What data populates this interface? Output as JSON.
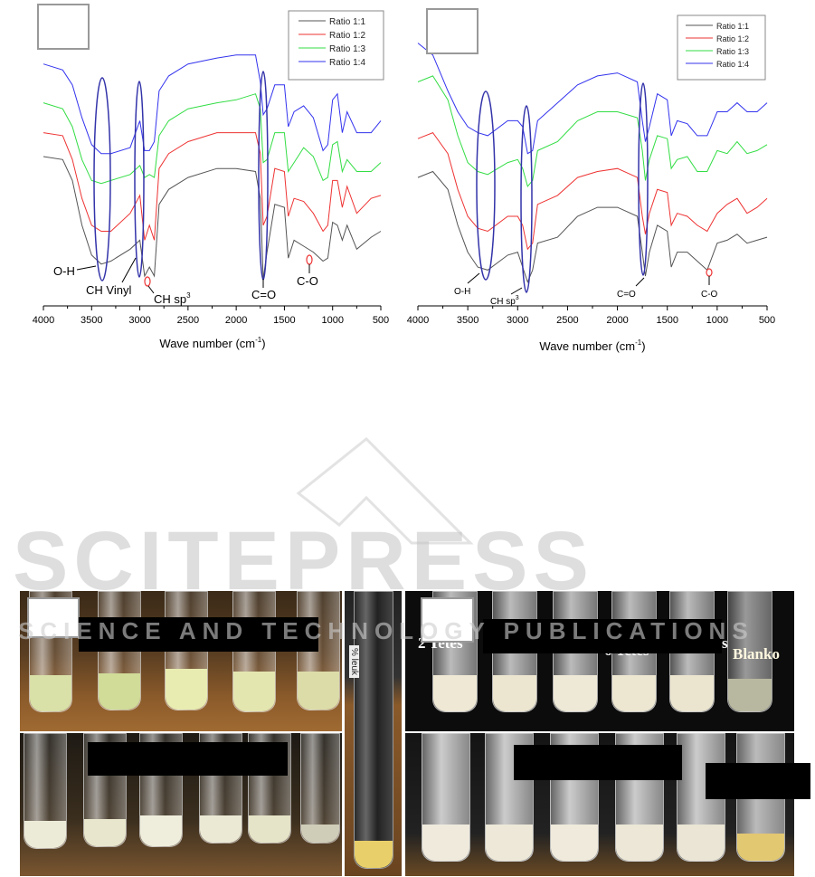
{
  "watermark": {
    "logo_text": "SCITEPRESS",
    "subtitle": "SCIENCE AND TECHNOLOGY PUBLICATIONS"
  },
  "chart_data": [
    {
      "type": "line",
      "xlabel": "Wave number (cm-1)",
      "xlabel_main": "Wave number (cm",
      "xlabel_sup": "-1",
      "xlabel_close": ")",
      "xlim": [
        4000,
        500
      ],
      "x_reversed": true,
      "ylim": [
        0,
        100
      ],
      "y_axis_shown": false,
      "xticks": [
        "4000",
        "3500",
        "3000",
        "2500",
        "2000",
        "1500",
        "1000",
        "500"
      ],
      "legend_position": "top-right",
      "x": [
        4000,
        3800,
        3700,
        3600,
        3500,
        3400,
        3300,
        3100,
        3000,
        2950,
        2900,
        2850,
        2800,
        2700,
        2500,
        2200,
        2000,
        1800,
        1750,
        1720,
        1680,
        1600,
        1500,
        1460,
        1400,
        1300,
        1200,
        1100,
        1050,
        1000,
        950,
        900,
        850,
        750,
        600,
        500
      ],
      "series": [
        {
          "name": "Ratio 1:1",
          "color": "#555555",
          "values": [
            50,
            49,
            42,
            27,
            17,
            14,
            15,
            19,
            22,
            10,
            13,
            10,
            34,
            39,
            43,
            46,
            46,
            45,
            36,
            9,
            18,
            34,
            33,
            16,
            22,
            20,
            18,
            15,
            16,
            28,
            27,
            22,
            27,
            19,
            23,
            25
          ]
        },
        {
          "name": "Ratio 1:2",
          "color": "#ee3333",
          "values": [
            58,
            57,
            49,
            36,
            27,
            25,
            25,
            31,
            37,
            22,
            27,
            22,
            46,
            51,
            55,
            58,
            58,
            58,
            51,
            27,
            30,
            46,
            45,
            30,
            36,
            35,
            31,
            25,
            27,
            42,
            42,
            33,
            40,
            31,
            36,
            37
          ]
        },
        {
          "name": "Ratio 1:3",
          "color": "#33dd44",
          "values": [
            68,
            66,
            60,
            49,
            42,
            41,
            42,
            44,
            47,
            43,
            44,
            43,
            57,
            62,
            66,
            68,
            69,
            71,
            66,
            48,
            49,
            58,
            58,
            45,
            48,
            53,
            50,
            42,
            43,
            54,
            55,
            45,
            49,
            45,
            45,
            48
          ]
        },
        {
          "name": "Ratio 1:4",
          "color": "#3333ee",
          "values": [
            81,
            79,
            74,
            63,
            54,
            51,
            51,
            53,
            62,
            52,
            52,
            55,
            72,
            77,
            81,
            83,
            84,
            84,
            75,
            64,
            66,
            74,
            74,
            60,
            65,
            67,
            63,
            52,
            54,
            69,
            71,
            58,
            65,
            58,
            58,
            62
          ]
        }
      ],
      "annotations": {
        "oh": "O-H",
        "ch_vinyl": "CH Vinyl",
        "ch_sp3": "CH sp",
        "ch_sp3_sup": "3",
        "co_double": "C=O",
        "co_single": "C-O"
      }
    },
    {
      "type": "line",
      "xlabel": "Wave number (cm-1)",
      "xlabel_main": "Wave number (cm",
      "xlabel_sup": "-1",
      "xlabel_close": ")",
      "xlim": [
        4000,
        500
      ],
      "x_reversed": true,
      "ylim": [
        0,
        100
      ],
      "y_axis_shown": false,
      "xticks": [
        "4000",
        "3500",
        "3000",
        "2500",
        "2000",
        "1500",
        "1000",
        "500"
      ],
      "legend_position": "top-right",
      "x": [
        4000,
        3850,
        3700,
        3600,
        3500,
        3400,
        3300,
        3100,
        3000,
        2950,
        2900,
        2850,
        2800,
        2600,
        2400,
        2200,
        2000,
        1800,
        1750,
        1720,
        1680,
        1600,
        1500,
        1460,
        1400,
        1300,
        1200,
        1100,
        1000,
        900,
        800,
        700,
        600,
        500
      ],
      "series": [
        {
          "name": "Ratio 1:1",
          "color": "#555555",
          "values": [
            43,
            45,
            39,
            27,
            18,
            13,
            12,
            17,
            18,
            13,
            8,
            12,
            21,
            23,
            30,
            33,
            33,
            30,
            18,
            10,
            18,
            27,
            25,
            13,
            18,
            18,
            15,
            12,
            21,
            22,
            24,
            21,
            22,
            23
          ]
        },
        {
          "name": "Ratio 1:2",
          "color": "#ee3333",
          "values": [
            56,
            58,
            51,
            39,
            30,
            26,
            25,
            30,
            30,
            27,
            19,
            21,
            34,
            37,
            43,
            45,
            46,
            43,
            30,
            24,
            31,
            39,
            38,
            27,
            31,
            30,
            27,
            25,
            31,
            34,
            36,
            31,
            33,
            36
          ]
        },
        {
          "name": "Ratio 1:3",
          "color": "#33dd44",
          "values": [
            75,
            77,
            69,
            57,
            48,
            45,
            44,
            48,
            49,
            46,
            40,
            42,
            52,
            55,
            62,
            65,
            65,
            63,
            52,
            42,
            49,
            57,
            56,
            46,
            49,
            50,
            45,
            45,
            52,
            51,
            55,
            51,
            52,
            54
          ]
        },
        {
          "name": "Ratio 1:4",
          "color": "#3333ee",
          "values": [
            88,
            84,
            72,
            65,
            60,
            58,
            57,
            62,
            62,
            60,
            51,
            52,
            62,
            68,
            74,
            77,
            78,
            75,
            62,
            55,
            60,
            71,
            69,
            57,
            62,
            61,
            57,
            57,
            65,
            65,
            68,
            65,
            65,
            68
          ]
        }
      ],
      "annotations": {
        "oh": "O-H",
        "ch_sp3": "CH sp",
        "ch_sp3_sup": "3",
        "co_double": "C=O",
        "co_single": "C-O"
      }
    }
  ],
  "photos": {
    "top_right_labels": {
      "left": "2 Tetes",
      "middle": "6 Tetes",
      "right_partial": "s",
      "blank": "Blanko"
    },
    "middle_tube_label": "% leuk"
  }
}
